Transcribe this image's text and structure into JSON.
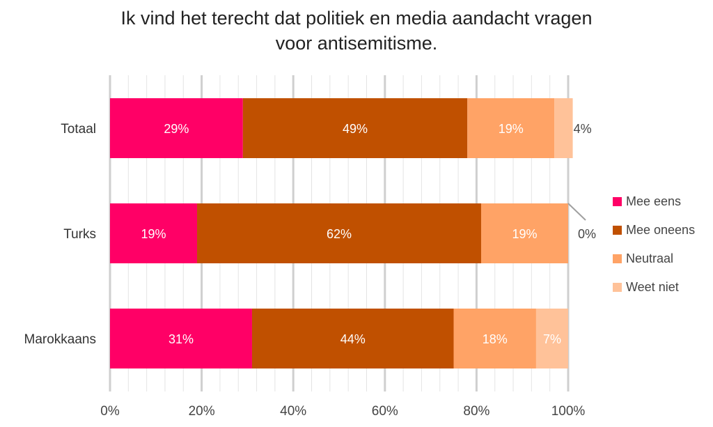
{
  "chart_data": {
    "type": "bar",
    "orientation": "horizontal",
    "stacked": true,
    "title_lines": [
      "Ik vind het terecht dat politiek en media aandacht vragen",
      "voor antisemitisme."
    ],
    "categories": [
      "Totaal",
      "Turks",
      "Marokkaans"
    ],
    "series": [
      {
        "name": "Mee eens",
        "color": "#ff0066",
        "values": [
          29,
          19,
          31
        ],
        "labels": [
          "29%",
          "19%",
          "31%"
        ]
      },
      {
        "name": "Mee oneens",
        "color": "#c05000",
        "values": [
          49,
          62,
          44
        ],
        "labels": [
          "49%",
          "62%",
          "44%"
        ]
      },
      {
        "name": "Neutraal",
        "color": "#ffa366",
        "values": [
          19,
          19,
          18
        ],
        "labels": [
          "19%",
          "19%",
          "18%"
        ]
      },
      {
        "name": "Weet niet",
        "color": "#ffc299",
        "values": [
          4,
          0,
          7
        ],
        "labels": [
          "4%",
          "0%",
          "7%"
        ]
      }
    ],
    "xlim": [
      0,
      100
    ],
    "xticks": [
      0,
      20,
      40,
      60,
      80,
      100
    ],
    "xtick_labels": [
      "0%",
      "20%",
      "40%",
      "60%",
      "80%",
      "100%"
    ],
    "grid": true,
    "legend_position": "right"
  }
}
